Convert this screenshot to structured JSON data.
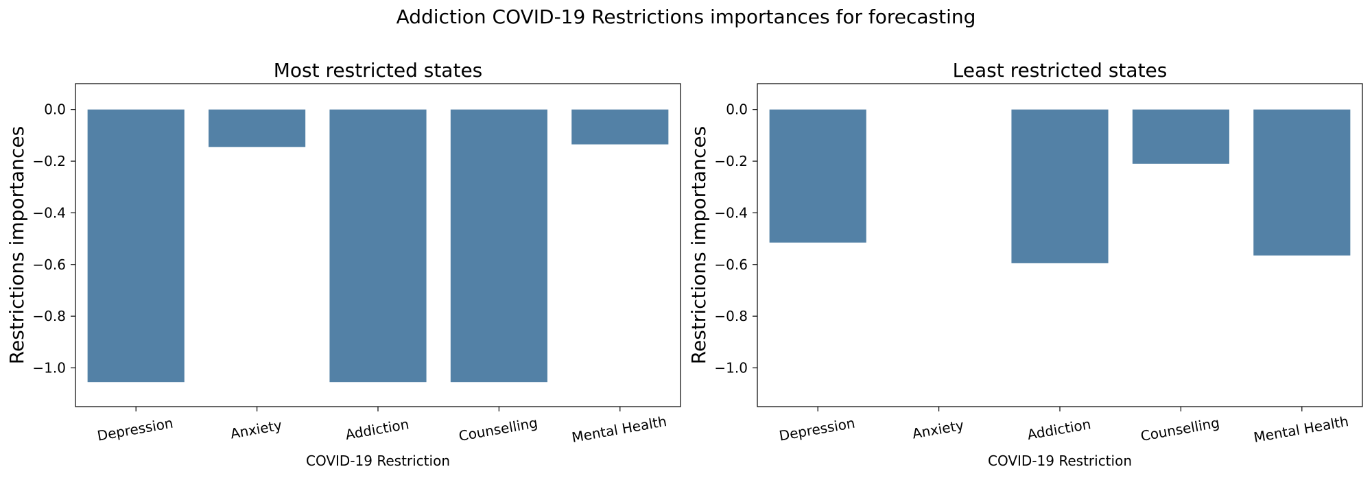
{
  "figure": {
    "title": "Addiction COVID-19 Restrictions importances for forecasting"
  },
  "chart_data": [
    {
      "type": "bar",
      "title": "Most restricted states",
      "xlabel": "COVID-19 Restriction",
      "ylabel": "Restrictions importances",
      "categories": [
        "Depression",
        "Anxiety",
        "Addiction",
        "Counselling",
        "Mental Health"
      ],
      "values": [
        -1.055,
        -0.145,
        -1.055,
        -1.055,
        -0.135
      ],
      "ylim": [
        -1.15,
        0.1
      ],
      "yticks": [
        0.0,
        -0.2,
        -0.4,
        -0.6,
        -0.8,
        -1.0
      ],
      "ytick_labels": [
        "0.0",
        "−0.2",
        "−0.4",
        "−0.6",
        "−0.8",
        "−1.0"
      ],
      "grid": false,
      "bar_color": "#5381a6"
    },
    {
      "type": "bar",
      "title": "Least restricted states",
      "xlabel": "COVID-19 Restriction",
      "ylabel": "Restrictions importances",
      "categories": [
        "Depression",
        "Anxiety",
        "Addiction",
        "Counselling",
        "Mental Health"
      ],
      "values": [
        -0.515,
        0.0,
        -0.595,
        -0.21,
        -0.565
      ],
      "ylim": [
        -1.15,
        0.1
      ],
      "yticks": [
        0.0,
        -0.2,
        -0.4,
        -0.6,
        -0.8,
        -1.0
      ],
      "ytick_labels": [
        "0.0",
        "−0.2",
        "−0.4",
        "−0.6",
        "−0.8",
        "−1.0"
      ],
      "grid": false,
      "bar_color": "#5381a6"
    }
  ]
}
